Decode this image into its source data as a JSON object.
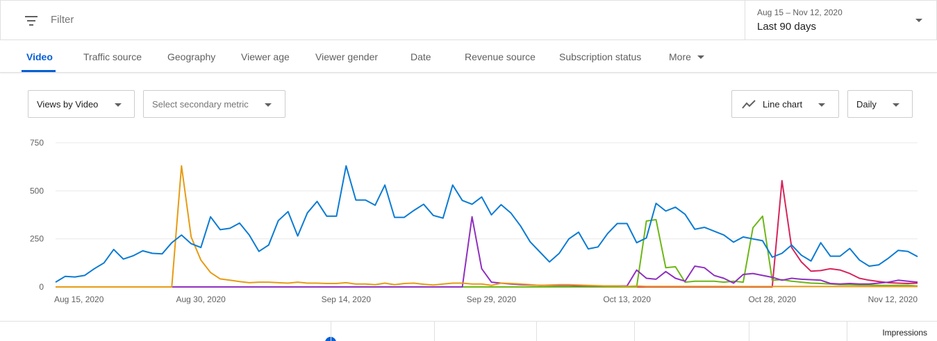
{
  "filter": {
    "placeholder": "Filter",
    "icon": "filter-icon"
  },
  "date_range": {
    "range_text": "Aug 15 – Nov 12, 2020",
    "period": "Last 90 days"
  },
  "tabs": [
    {
      "label": "Video",
      "active": true
    },
    {
      "label": "Traffic source"
    },
    {
      "label": "Geography"
    },
    {
      "label": "Viewer age"
    },
    {
      "label": "Viewer gender"
    },
    {
      "label": "Date"
    },
    {
      "label": "Revenue source"
    },
    {
      "label": "Subscription status"
    },
    {
      "label": "More"
    }
  ],
  "controls": {
    "metric": "Views by Video",
    "secondary_metric": "Select secondary metric",
    "chart_type": "Line chart",
    "chart_type_icon": "line-chart-icon",
    "interval": "Daily"
  },
  "footer": {
    "impressions_label": "Impressions"
  },
  "chart_data": {
    "type": "line",
    "x_tick_labels": [
      "Aug 15, 2020",
      "Aug 30, 2020",
      "Sep 14, 2020",
      "Sep 29, 2020",
      "Oct 13, 2020",
      "Oct 28, 2020",
      "Nov 12, 2020"
    ],
    "x_tick_days": [
      0,
      15,
      30,
      45,
      59,
      74,
      89
    ],
    "y_ticks": [
      0,
      250,
      500,
      750
    ],
    "ylim": [
      0,
      750
    ],
    "xlim": [
      0,
      89
    ],
    "grid": true,
    "series": [
      {
        "color": "#0a7bd3",
        "values": [
          25,
          55,
          52,
          60,
          95,
          125,
          195,
          145,
          162,
          188,
          175,
          172,
          230,
          270,
          225,
          205,
          365,
          298,
          305,
          332,
          270,
          185,
          218,
          345,
          392,
          265,
          385,
          445,
          368,
          368,
          630,
          452,
          452,
          425,
          530,
          362,
          362,
          398,
          430,
          372,
          358,
          530,
          450,
          430,
          468,
          375,
          428,
          385,
          318,
          235,
          182,
          130,
          175,
          250,
          285,
          198,
          208,
          278,
          330,
          330,
          230,
          255,
          435,
          395,
          415,
          378,
          300,
          310,
          290,
          270,
          233,
          260,
          250,
          240,
          155,
          175,
          218,
          165,
          135,
          230,
          160,
          160,
          200,
          140,
          108,
          115,
          150,
          190,
          185,
          158
        ]
      },
      {
        "color": "#e69b12",
        "values": [
          0,
          0,
          0,
          0,
          0,
          0,
          0,
          0,
          0,
          0,
          0,
          0,
          0,
          630,
          260,
          140,
          75,
          42,
          35,
          28,
          22,
          25,
          25,
          22,
          20,
          25,
          20,
          20,
          18,
          18,
          22,
          15,
          15,
          12,
          20,
          12,
          18,
          20,
          14,
          10,
          15,
          20,
          20,
          15,
          15,
          8,
          20,
          18,
          15,
          12,
          8,
          10,
          12,
          12,
          10,
          8,
          6,
          5,
          5,
          3,
          5,
          3,
          3,
          3,
          3,
          3,
          3,
          3,
          3,
          3,
          2,
          2,
          2,
          2,
          2,
          2,
          2,
          2,
          2,
          2,
          2,
          2,
          2,
          2,
          2,
          2,
          2,
          2,
          2,
          2
        ]
      },
      {
        "color": "#8f2fc0",
        "values": [
          0,
          0,
          0,
          0,
          0,
          0,
          0,
          0,
          0,
          0,
          0,
          0,
          0,
          0,
          0,
          0,
          0,
          0,
          0,
          0,
          0,
          0,
          0,
          0,
          0,
          0,
          0,
          0,
          0,
          0,
          0,
          0,
          0,
          0,
          0,
          0,
          0,
          0,
          0,
          0,
          0,
          0,
          0,
          365,
          95,
          25,
          20,
          15,
          12,
          10,
          8,
          8,
          8,
          8,
          6,
          6,
          5,
          5,
          5,
          5,
          88,
          45,
          40,
          80,
          45,
          30,
          108,
          100,
          60,
          45,
          20,
          65,
          70,
          60,
          50,
          35,
          45,
          40,
          38,
          35,
          18,
          15,
          18,
          15,
          15,
          20,
          25,
          35,
          30,
          25
        ]
      },
      {
        "color": "#6cb616",
        "values": [
          0,
          0,
          0,
          0,
          0,
          0,
          0,
          0,
          0,
          0,
          0,
          0,
          0,
          0,
          0,
          0,
          0,
          0,
          0,
          0,
          0,
          0,
          0,
          0,
          0,
          0,
          0,
          0,
          0,
          0,
          0,
          0,
          0,
          0,
          0,
          0,
          0,
          0,
          0,
          0,
          0,
          0,
          0,
          0,
          0,
          0,
          0,
          0,
          0,
          0,
          0,
          0,
          0,
          0,
          0,
          0,
          0,
          0,
          0,
          0,
          0,
          343,
          350,
          100,
          105,
          25,
          30,
          30,
          30,
          25,
          30,
          25,
          308,
          368,
          35,
          38,
          30,
          25,
          20,
          18,
          15,
          12,
          12,
          10,
          10,
          8,
          8,
          8,
          8,
          5
        ]
      },
      {
        "color": "#d6245a",
        "values": [
          0,
          0,
          0,
          0,
          0,
          0,
          0,
          0,
          0,
          0,
          0,
          0,
          0,
          0,
          0,
          0,
          0,
          0,
          0,
          0,
          0,
          0,
          0,
          0,
          0,
          0,
          0,
          0,
          0,
          0,
          0,
          0,
          0,
          0,
          0,
          0,
          0,
          0,
          0,
          0,
          0,
          0,
          0,
          0,
          0,
          0,
          0,
          0,
          0,
          0,
          0,
          0,
          0,
          0,
          0,
          0,
          0,
          0,
          0,
          0,
          0,
          0,
          0,
          0,
          0,
          0,
          0,
          0,
          0,
          0,
          0,
          0,
          0,
          0,
          0,
          553,
          205,
          130,
          82,
          85,
          95,
          88,
          70,
          45,
          35,
          28,
          22,
          20,
          18,
          20
        ]
      }
    ]
  }
}
